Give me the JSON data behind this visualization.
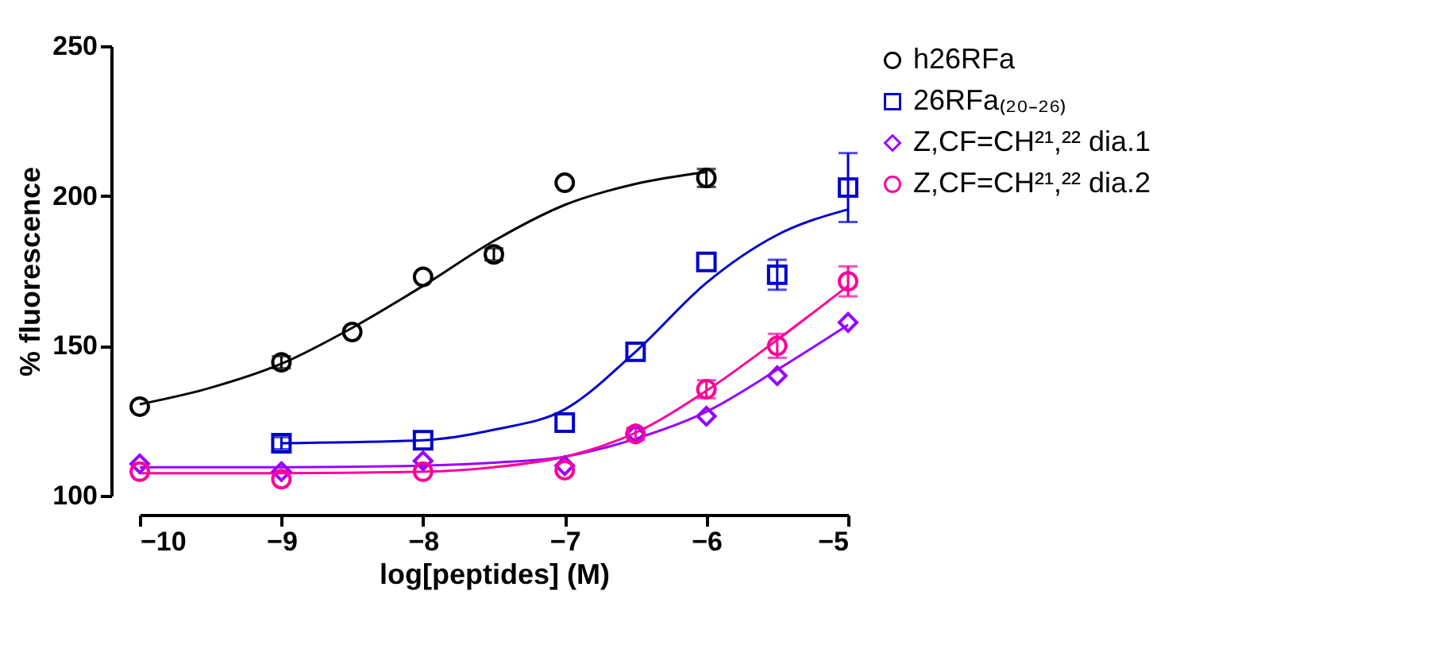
{
  "chart_data": {
    "type": "scatter",
    "xlabel": "log[peptides] (M)",
    "ylabel": "% fluorescence",
    "xlim": [
      -10,
      -5
    ],
    "xticks": [
      -10,
      -9,
      -8,
      -7,
      -6,
      -5
    ],
    "ylim": [
      100,
      250
    ],
    "yticks": [
      100,
      150,
      200,
      250
    ],
    "grid": false,
    "legend": "right",
    "series": [
      {
        "name": "h26RFa",
        "color": "#000000",
        "marker": "circle",
        "x": [
          -10,
          -9,
          -8.5,
          -8,
          -7.5,
          -7,
          -6
        ],
        "values": [
          129.7,
          144.5,
          154.6,
          173,
          180.5,
          204.4,
          206
        ],
        "errors": [
          null,
          2,
          null,
          null,
          2,
          null,
          3
        ]
      },
      {
        "name": "26RFa₍₂₀₋₂₆₎",
        "color": "#0000cc",
        "marker": "square",
        "x": [
          -9,
          -8,
          -7,
          -6.5,
          -6,
          -5.5,
          -5
        ],
        "values": [
          117.5,
          118.5,
          124.4,
          148,
          178,
          173.7,
          202.8
        ],
        "errors": [
          2,
          null,
          null,
          null,
          null,
          5,
          11.5
        ]
      },
      {
        "name": "Z,CF=CH²¹,²² dia.1",
        "color": "#9900ff",
        "marker": "diamond",
        "x": [
          -10,
          -9,
          -8,
          -7,
          -6.5,
          -6,
          -5.5,
          -5
        ],
        "values": [
          110.6,
          108,
          111.6,
          110,
          120.6,
          126.5,
          140,
          157.8
        ]
      },
      {
        "name": "Z,CF=CH²¹,²² dia.2",
        "color": "#ff0099",
        "marker": "circle",
        "x": [
          -10,
          -9,
          -8,
          -7,
          -6.5,
          -6,
          -5.5,
          -5
        ],
        "values": [
          108,
          105.5,
          108,
          108.5,
          120.6,
          135.5,
          150,
          171.5
        ],
        "errors": [
          null,
          null,
          null,
          null,
          2,
          3,
          4,
          5
        ]
      },
      {
        "type": "line",
        "color": "#000000",
        "marker": "none",
        "x": [
          -10,
          -9.5,
          -9,
          -8.5,
          -8,
          -7.5,
          -7,
          -6.5,
          -6
        ],
        "values": [
          130.5,
          136,
          144,
          156,
          170,
          185,
          197,
          204,
          208
        ]
      },
      {
        "type": "line",
        "color": "#0000cc",
        "marker": "none",
        "x": [
          -9,
          -8,
          -7.5,
          -7,
          -6.5,
          -6,
          -5.5,
          -5
        ],
        "values": [
          117.5,
          118.5,
          122,
          128.8,
          148,
          171,
          187,
          195.5
        ]
      },
      {
        "type": "line",
        "color": "#9900ff",
        "marker": "none",
        "x": [
          -10,
          -9,
          -8,
          -7.5,
          -7,
          -6.5,
          -6,
          -5.5,
          -5
        ],
        "values": [
          109.5,
          109.5,
          110,
          111,
          113,
          119,
          128,
          142,
          157
        ]
      },
      {
        "type": "line",
        "color": "#ff0099",
        "marker": "none",
        "x": [
          -10,
          -9,
          -8,
          -7.5,
          -7,
          -6.5,
          -6,
          -5.5,
          -5
        ],
        "values": [
          107.5,
          107.5,
          108,
          109.5,
          113,
          121,
          135,
          152,
          170
        ]
      }
    ]
  }
}
